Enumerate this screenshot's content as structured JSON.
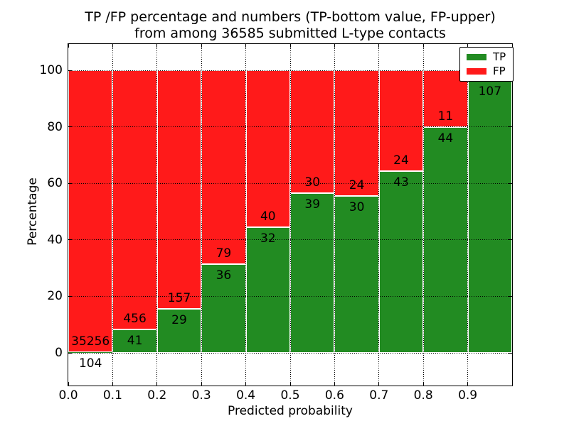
{
  "figure": {
    "title_line1": "TP /FP percentage and numbers (TP-bottom value, FP-upper)",
    "title_line2": "from among 36585 submitted L-type contacts"
  },
  "axes": {
    "x_label": "Predicted probability",
    "y_label": "Percentage",
    "x_range": [
      0.0,
      1.0
    ],
    "x_ticks": [
      {
        "value": 0.0,
        "label": "0.0"
      },
      {
        "value": 0.1,
        "label": "0.1"
      },
      {
        "value": 0.2,
        "label": "0.2"
      },
      {
        "value": 0.3,
        "label": "0.3"
      },
      {
        "value": 0.4,
        "label": "0.4"
      },
      {
        "value": 0.5,
        "label": "0.5"
      },
      {
        "value": 0.6,
        "label": "0.6"
      },
      {
        "value": 0.7,
        "label": "0.7"
      },
      {
        "value": 0.8,
        "label": "0.8"
      },
      {
        "value": 0.9,
        "label": "0.9"
      }
    ],
    "y_ticks": [
      {
        "value": 0,
        "label": "0"
      },
      {
        "value": 20,
        "label": "20"
      },
      {
        "value": 40,
        "label": "40"
      },
      {
        "value": 60,
        "label": "60"
      },
      {
        "value": 80,
        "label": "80"
      },
      {
        "value": 100,
        "label": "100"
      }
    ],
    "grid": true,
    "grid_style": "dotted-black"
  },
  "legend": {
    "position": "upper-right",
    "items": [
      {
        "label": "TP",
        "color": "#228b22"
      },
      {
        "label": "FP",
        "color": "#ff1a1a"
      }
    ]
  },
  "chart_data": {
    "type": "bar",
    "stacked": true,
    "orientation": "vertical",
    "title": "TP /FP percentage and numbers (TP-bottom value, FP-upper) from among 36585 submitted L-type contacts",
    "xlabel": "Predicted probability",
    "ylabel": "Percentage",
    "total_contacts_in_title": 36585,
    "bin_edges": [
      0.0,
      0.1,
      0.2,
      0.3,
      0.4,
      0.5,
      0.6,
      0.7,
      0.8,
      0.9,
      1.0
    ],
    "ylim_gridlines": [
      0,
      100
    ],
    "legend_position": "upper right",
    "series": [
      {
        "name": "TP",
        "color": "#228b22",
        "pct": [
          0.3,
          8.2,
          15.6,
          31.3,
          44.4,
          56.5,
          55.6,
          64.2,
          80.0,
          96.5
        ],
        "count_labels": [
          "104",
          "41",
          "29",
          "36",
          "32",
          "39",
          "30",
          "43",
          "44",
          "107"
        ]
      },
      {
        "name": "FP",
        "color": "#ff1a1a",
        "pct": [
          99.7,
          91.8,
          84.4,
          68.7,
          55.6,
          43.5,
          44.4,
          35.8,
          20.0,
          3.5
        ],
        "count_labels": [
          "35256",
          "456",
          "157",
          "79",
          "40",
          "30",
          "24",
          "24",
          "11",
          null
        ]
      }
    ]
  }
}
